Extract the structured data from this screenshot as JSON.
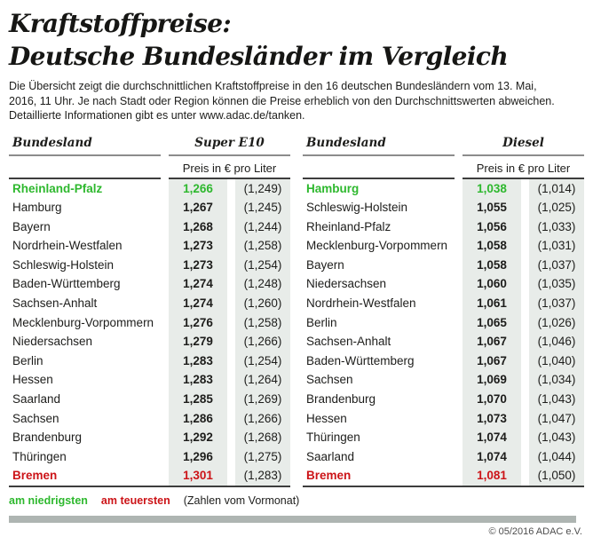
{
  "colors": {
    "green": "#2eb82e",
    "red": "#cc1418",
    "column_shade": "#e8ece9",
    "bar": "#aeb5b2"
  },
  "title": {
    "line1": "Kraftstoffpreise:",
    "line2": "Deutsche Bundesländer im Vergleich"
  },
  "intro": {
    "line1": "Die Übersicht zeigt die durchschnittlichen Kraftstoffpreise in den 16 deutschen Bundesländern vom 13. Mai,",
    "line2": "2016, 11 Uhr. Je nach Stadt oder Region können die Preise erheblich von den Durchschnittswerten abweichen.",
    "line3": "Detaillierte Informationen gibt es unter www.adac.de/tanken."
  },
  "tables": [
    {
      "region_header": "Bundesland",
      "fuel_header": "Super E10",
      "unit_header": "Preis in € pro Liter",
      "rows": [
        {
          "land": "Rheinland-Pfalz",
          "price": "1,266",
          "prev": "(1,249)",
          "highlight": "low"
        },
        {
          "land": "Hamburg",
          "price": "1,267",
          "prev": "(1,245)",
          "highlight": ""
        },
        {
          "land": "Bayern",
          "price": "1,268",
          "prev": "(1,244)",
          "highlight": ""
        },
        {
          "land": "Nordrhein-Westfalen",
          "price": "1,273",
          "prev": "(1,258)",
          "highlight": ""
        },
        {
          "land": "Schleswig-Holstein",
          "price": "1,273",
          "prev": "(1,254)",
          "highlight": ""
        },
        {
          "land": "Baden-Württemberg",
          "price": "1,274",
          "prev": "(1,248)",
          "highlight": ""
        },
        {
          "land": "Sachsen-Anhalt",
          "price": "1,274",
          "prev": "(1,260)",
          "highlight": ""
        },
        {
          "land": "Mecklenburg-Vorpommern",
          "price": "1,276",
          "prev": "(1,258)",
          "highlight": ""
        },
        {
          "land": "Niedersachsen",
          "price": "1,279",
          "prev": "(1,266)",
          "highlight": ""
        },
        {
          "land": "Berlin",
          "price": "1,283",
          "prev": "(1,254)",
          "highlight": ""
        },
        {
          "land": "Hessen",
          "price": "1,283",
          "prev": "(1,264)",
          "highlight": ""
        },
        {
          "land": "Saarland",
          "price": "1,285",
          "prev": "(1,269)",
          "highlight": ""
        },
        {
          "land": "Sachsen",
          "price": "1,286",
          "prev": "(1,266)",
          "highlight": ""
        },
        {
          "land": "Brandenburg",
          "price": "1,292",
          "prev": "(1,268)",
          "highlight": ""
        },
        {
          "land": "Thüringen",
          "price": "1,296",
          "prev": "(1,275)",
          "highlight": ""
        },
        {
          "land": "Bremen",
          "price": "1,301",
          "prev": "(1,283)",
          "highlight": "high"
        }
      ]
    },
    {
      "region_header": "Bundesland",
      "fuel_header": "Diesel",
      "unit_header": "Preis in € pro Liter",
      "rows": [
        {
          "land": "Hamburg",
          "price": "1,038",
          "prev": "(1,014)",
          "highlight": "low"
        },
        {
          "land": "Schleswig-Holstein",
          "price": "1,055",
          "prev": "(1,025)",
          "highlight": ""
        },
        {
          "land": "Rheinland-Pfalz",
          "price": "1,056",
          "prev": "(1,033)",
          "highlight": ""
        },
        {
          "land": "Mecklenburg-Vorpommern",
          "price": "1,058",
          "prev": "(1,031)",
          "highlight": ""
        },
        {
          "land": "Bayern",
          "price": "1,058",
          "prev": "(1,037)",
          "highlight": ""
        },
        {
          "land": "Niedersachsen",
          "price": "1,060",
          "prev": "(1,035)",
          "highlight": ""
        },
        {
          "land": "Nordrhein-Westfalen",
          "price": "1,061",
          "prev": "(1,037)",
          "highlight": ""
        },
        {
          "land": "Berlin",
          "price": "1,065",
          "prev": "(1,026)",
          "highlight": ""
        },
        {
          "land": "Sachsen-Anhalt",
          "price": "1,067",
          "prev": "(1,046)",
          "highlight": ""
        },
        {
          "land": "Baden-Württemberg",
          "price": "1,067",
          "prev": "(1,040)",
          "highlight": ""
        },
        {
          "land": "Sachsen",
          "price": "1,069",
          "prev": "(1,034)",
          "highlight": ""
        },
        {
          "land": "Brandenburg",
          "price": "1,070",
          "prev": "(1,043)",
          "highlight": ""
        },
        {
          "land": "Hessen",
          "price": "1,073",
          "prev": "(1,047)",
          "highlight": ""
        },
        {
          "land": "Thüringen",
          "price": "1,074",
          "prev": "(1,043)",
          "highlight": ""
        },
        {
          "land": "Saarland",
          "price": "1,074",
          "prev": "(1,044)",
          "highlight": ""
        },
        {
          "land": "Bremen",
          "price": "1,081",
          "prev": "(1,050)",
          "highlight": "high"
        }
      ]
    }
  ],
  "legend": {
    "lowest": "am niedrigsten",
    "highest": "am teuersten",
    "note": "(Zahlen vom Vormonat)"
  },
  "copyright": "© 05/2016 ADAC e.V.",
  "chart_data": [
    {
      "type": "table",
      "title": "Super E10",
      "unit": "Preis in € pro Liter",
      "columns": [
        "Bundesland",
        "Preis",
        "Vormonat"
      ],
      "rows": [
        [
          "Rheinland-Pfalz",
          1.266,
          1.249
        ],
        [
          "Hamburg",
          1.267,
          1.245
        ],
        [
          "Bayern",
          1.268,
          1.244
        ],
        [
          "Nordrhein-Westfalen",
          1.273,
          1.258
        ],
        [
          "Schleswig-Holstein",
          1.273,
          1.254
        ],
        [
          "Baden-Württemberg",
          1.274,
          1.248
        ],
        [
          "Sachsen-Anhalt",
          1.274,
          1.26
        ],
        [
          "Mecklenburg-Vorpommern",
          1.276,
          1.258
        ],
        [
          "Niedersachsen",
          1.279,
          1.266
        ],
        [
          "Berlin",
          1.283,
          1.254
        ],
        [
          "Hessen",
          1.283,
          1.264
        ],
        [
          "Saarland",
          1.285,
          1.269
        ],
        [
          "Sachsen",
          1.286,
          1.266
        ],
        [
          "Brandenburg",
          1.292,
          1.268
        ],
        [
          "Thüringen",
          1.296,
          1.275
        ],
        [
          "Bremen",
          1.301,
          1.283
        ]
      ],
      "annotations": {
        "lowest": "Rheinland-Pfalz",
        "highest": "Bremen"
      }
    },
    {
      "type": "table",
      "title": "Diesel",
      "unit": "Preis in € pro Liter",
      "columns": [
        "Bundesland",
        "Preis",
        "Vormonat"
      ],
      "rows": [
        [
          "Hamburg",
          1.038,
          1.014
        ],
        [
          "Schleswig-Holstein",
          1.055,
          1.025
        ],
        [
          "Rheinland-Pfalz",
          1.056,
          1.033
        ],
        [
          "Mecklenburg-Vorpommern",
          1.058,
          1.031
        ],
        [
          "Bayern",
          1.058,
          1.037
        ],
        [
          "Niedersachsen",
          1.06,
          1.035
        ],
        [
          "Nordrhein-Westfalen",
          1.061,
          1.037
        ],
        [
          "Berlin",
          1.065,
          1.026
        ],
        [
          "Sachsen-Anhalt",
          1.067,
          1.046
        ],
        [
          "Baden-Württemberg",
          1.067,
          1.04
        ],
        [
          "Sachsen",
          1.069,
          1.034
        ],
        [
          "Brandenburg",
          1.07,
          1.043
        ],
        [
          "Hessen",
          1.073,
          1.047
        ],
        [
          "Thüringen",
          1.074,
          1.043
        ],
        [
          "Saarland",
          1.074,
          1.044
        ],
        [
          "Bremen",
          1.081,
          1.05
        ]
      ],
      "annotations": {
        "lowest": "Hamburg",
        "highest": "Bremen"
      }
    }
  ]
}
